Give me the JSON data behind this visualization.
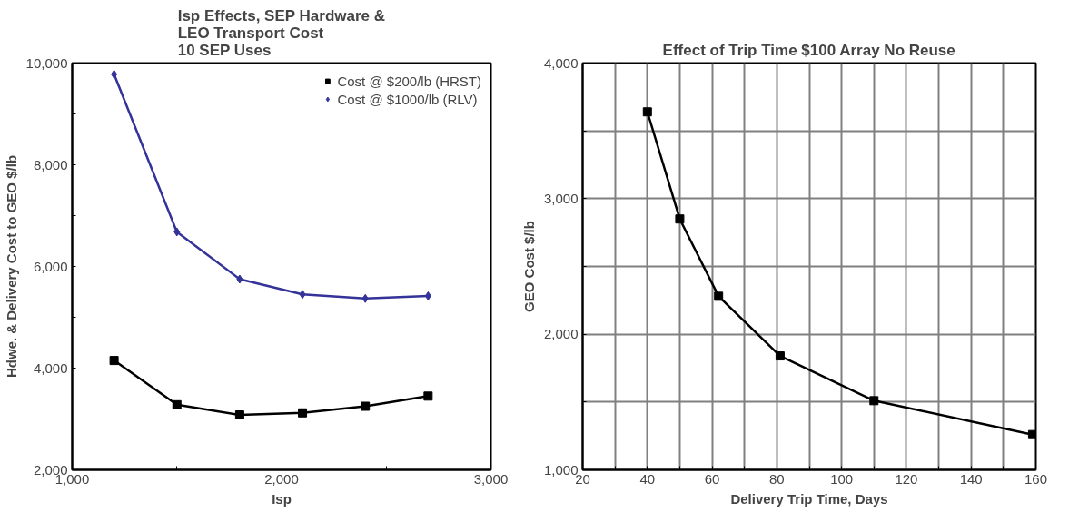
{
  "chart_data": [
    {
      "type": "line",
      "title": "Isp Effects, SEP Hardware &\nLEO Transport Cost\n10 SEP Uses",
      "xlabel": "Isp",
      "ylabel": "Hdwe. & Delivery Cost to GEO $/lb",
      "x": [
        1200,
        1500,
        1800,
        2100,
        2400,
        2700
      ],
      "series": [
        {
          "name": "Cost @ $200/lb (HRST)",
          "color": "#000000",
          "marker": "square",
          "values": [
            4150,
            3280,
            3080,
            3120,
            3250,
            3450
          ]
        },
        {
          "name": "Cost @ $1000/lb (RLV)",
          "color": "#333399",
          "marker": "diamond",
          "values": [
            9780,
            6680,
            5750,
            5450,
            5370,
            5420
          ]
        }
      ],
      "xlim": [
        1000,
        3000
      ],
      "xticks": [
        {
          "value": 1000,
          "label": "1,000"
        },
        {
          "value": 1500,
          "label": null
        },
        {
          "value": 2000,
          "label": "2,000"
        },
        {
          "value": 2500,
          "label": null
        },
        {
          "value": 3000,
          "label": "3,000"
        }
      ],
      "ylim": [
        2000,
        10000
      ],
      "yticks": [
        {
          "value": 2000,
          "label": "2,000"
        },
        {
          "value": 3000,
          "label": null
        },
        {
          "value": 4000,
          "label": "4,000"
        },
        {
          "value": 5000,
          "label": null
        },
        {
          "value": 6000,
          "label": "6,000"
        },
        {
          "value": 7000,
          "label": null
        },
        {
          "value": 8000,
          "label": "8,000"
        },
        {
          "value": 9000,
          "label": null
        },
        {
          "value": 10000,
          "label": "10,000"
        }
      ],
      "grid": false,
      "legend": "top right"
    },
    {
      "type": "line",
      "title": "Effect of Trip Time $100 Array No Reuse",
      "xlabel": "Delivery Trip Time, Days",
      "ylabel": "GEO Cost $/lb",
      "x": [
        40,
        50,
        62,
        81,
        110,
        159
      ],
      "series": [
        {
          "color": "#000000",
          "values": [
            3640,
            2850,
            2280,
            1840,
            1510,
            1260
          ]
        }
      ],
      "marker": "square",
      "xlim": [
        20,
        160
      ],
      "xticks": [
        20,
        {
          "value": 30,
          "label": null
        },
        40,
        {
          "value": 50,
          "label": null
        },
        60,
        {
          "value": 70,
          "label": null
        },
        80,
        {
          "value": 90,
          "label": null
        },
        100,
        {
          "value": 110,
          "label": null
        },
        120,
        {
          "value": 130,
          "label": null
        },
        140,
        {
          "value": 150,
          "label": null
        },
        160
      ],
      "ylim": [
        1000,
        4000
      ],
      "yticks": [
        {
          "value": 1000,
          "label": "1,000"
        },
        {
          "value": 1500,
          "label": null
        },
        {
          "value": 2000,
          "label": "2,000"
        },
        {
          "value": 2500,
          "label": null
        },
        {
          "value": 3000,
          "label": "3,000"
        },
        {
          "value": 3500,
          "label": null
        },
        {
          "value": 4000,
          "label": "4,000"
        }
      ],
      "grid": true
    }
  ]
}
